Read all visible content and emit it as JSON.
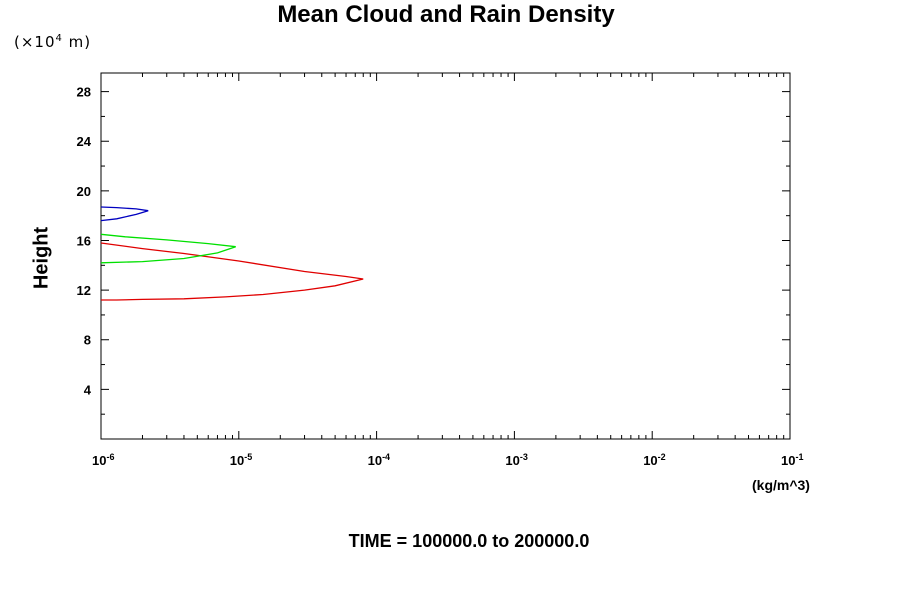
{
  "chart_data": {
    "type": "line",
    "title": "Mean Cloud and Rain Density",
    "ylabel": "Height",
    "y_scale_label": "(×10⁴ m)",
    "xlabel": "(kg/m^3)",
    "footer": "TIME = 100000.0 to 200000.0",
    "x_scale": "log",
    "xlim": [
      1e-06,
      0.1
    ],
    "ylim": [
      0,
      29.5
    ],
    "x_ticks": [
      {
        "base": "10",
        "exp": "-6"
      },
      {
        "base": "10",
        "exp": "-5"
      },
      {
        "base": "10",
        "exp": "-4"
      },
      {
        "base": "10",
        "exp": "-3"
      },
      {
        "base": "10",
        "exp": "-2"
      },
      {
        "base": "10",
        "exp": "-1"
      }
    ],
    "y_ticks": [
      "4",
      "8",
      "12",
      "16",
      "20",
      "24",
      "28"
    ],
    "series": [
      {
        "color": "#e00000",
        "points": [
          [
            1e-06,
            11.2
          ],
          [
            1.3e-06,
            11.2
          ],
          [
            2e-06,
            11.25
          ],
          [
            4e-06,
            11.3
          ],
          [
            8e-06,
            11.45
          ],
          [
            1.5e-05,
            11.65
          ],
          [
            3e-05,
            12.0
          ],
          [
            5e-05,
            12.35
          ],
          [
            8e-05,
            12.9
          ],
          [
            6e-05,
            13.1
          ],
          [
            3e-05,
            13.5
          ],
          [
            1e-05,
            14.35
          ],
          [
            4e-06,
            14.95
          ],
          [
            2e-06,
            15.35
          ],
          [
            1e-06,
            15.8
          ]
        ]
      },
      {
        "color": "#00e000",
        "points": [
          [
            1e-06,
            14.2
          ],
          [
            2e-06,
            14.3
          ],
          [
            4e-06,
            14.55
          ],
          [
            7e-06,
            15.0
          ],
          [
            9.5e-06,
            15.5
          ],
          [
            6e-06,
            15.75
          ],
          [
            3e-06,
            16.05
          ],
          [
            1.5e-06,
            16.3
          ],
          [
            1e-06,
            16.5
          ]
        ]
      },
      {
        "color": "#0000c0",
        "points": [
          [
            1e-06,
            17.6
          ],
          [
            1.3e-06,
            17.75
          ],
          [
            1.8e-06,
            18.1
          ],
          [
            2.2e-06,
            18.4
          ],
          [
            1.8e-06,
            18.55
          ],
          [
            1.3e-06,
            18.65
          ],
          [
            1e-06,
            18.7
          ]
        ]
      }
    ]
  }
}
